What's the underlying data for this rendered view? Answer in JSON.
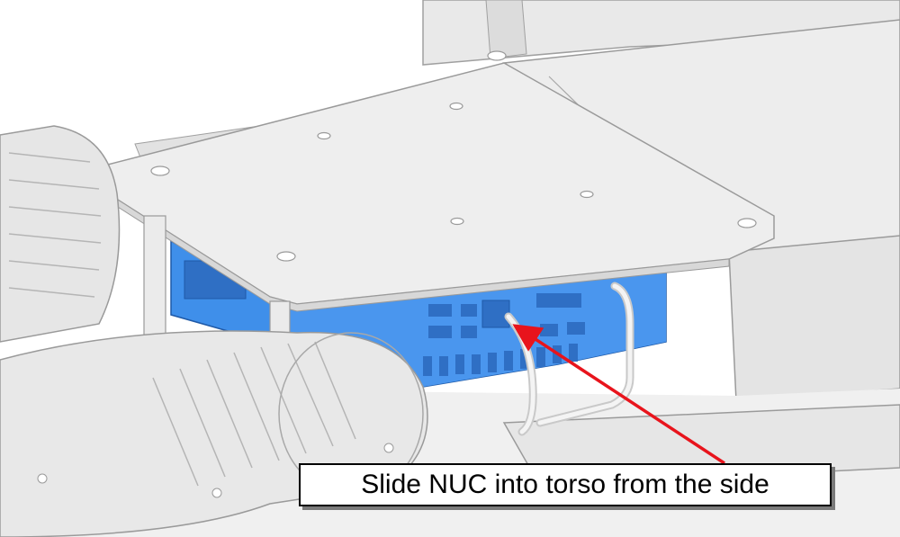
{
  "annotation": {
    "label": "Slide NUC into torso from the side"
  },
  "colors": {
    "nuc": "#3f8fea",
    "nuc_dark": "#2f6fc4",
    "part": "#ececec",
    "part_shade": "#d4d4d4",
    "edge": "#9a9a9a",
    "arrow": "#e8141c"
  }
}
